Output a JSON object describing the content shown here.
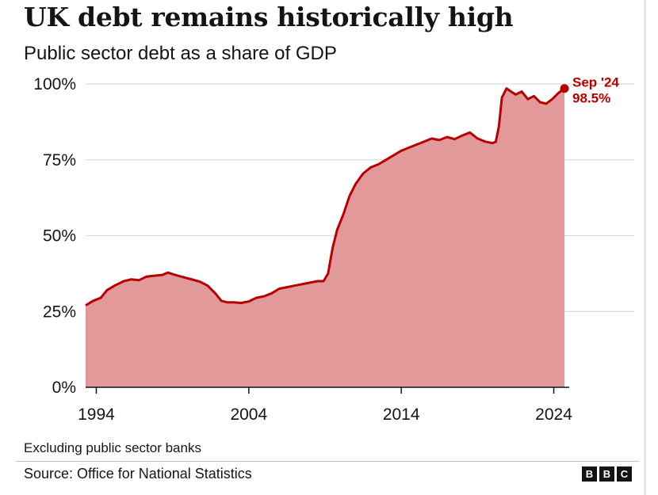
{
  "header": {
    "title": "UK debt remains historically high",
    "subtitle": "Public sector debt as a share of GDP"
  },
  "footer": {
    "note": "Excluding public sector banks",
    "source": "Source: Office for National Statistics",
    "logo_letters": [
      "B",
      "B",
      "C"
    ]
  },
  "colors": {
    "line": "#b80000",
    "area": "#e19999",
    "grid": "#d6d6d6"
  },
  "chart_data": {
    "type": "area",
    "title": "UK debt remains historically high",
    "subtitle": "Public sector debt as a share of GDP",
    "xlabel": "",
    "ylabel": "",
    "xlim": [
      1993.3,
      2024.7
    ],
    "ylim": [
      0,
      100
    ],
    "y_ticks": [
      {
        "value": 0,
        "label": "0%"
      },
      {
        "value": 25,
        "label": "25%"
      },
      {
        "value": 50,
        "label": "50%"
      },
      {
        "value": 75,
        "label": "75%"
      },
      {
        "value": 100,
        "label": "100%"
      }
    ],
    "x_ticks": [
      {
        "value": 1994,
        "label": "1994"
      },
      {
        "value": 2004,
        "label": "2004"
      },
      {
        "value": 2014,
        "label": "2014"
      },
      {
        "value": 2024,
        "label": "2024"
      }
    ],
    "grid": true,
    "series": [
      {
        "values": [
          [
            1993.3,
            27.0
          ],
          [
            1993.8,
            28.5
          ],
          [
            1994.3,
            29.5
          ],
          [
            1994.7,
            32.0
          ],
          [
            1995.2,
            33.5
          ],
          [
            1995.8,
            35.0
          ],
          [
            1996.3,
            35.6
          ],
          [
            1996.8,
            35.3
          ],
          [
            1997.3,
            36.5
          ],
          [
            1997.8,
            36.8
          ],
          [
            1998.3,
            37.0
          ],
          [
            1998.7,
            37.8
          ],
          [
            1999.2,
            37.0
          ],
          [
            1999.8,
            36.2
          ],
          [
            2000.3,
            35.5
          ],
          [
            2000.8,
            34.8
          ],
          [
            2001.3,
            33.5
          ],
          [
            2001.8,
            31.0
          ],
          [
            2002.2,
            28.5
          ],
          [
            2002.6,
            28.0
          ],
          [
            2003.0,
            28.0
          ],
          [
            2003.5,
            27.8
          ],
          [
            2004.0,
            28.3
          ],
          [
            2004.5,
            29.5
          ],
          [
            2005.0,
            30.0
          ],
          [
            2005.5,
            31.0
          ],
          [
            2006.0,
            32.5
          ],
          [
            2006.5,
            33.0
          ],
          [
            2007.0,
            33.5
          ],
          [
            2007.5,
            34.0
          ],
          [
            2008.0,
            34.5
          ],
          [
            2008.5,
            35.0
          ],
          [
            2008.9,
            35.0
          ],
          [
            2009.2,
            37.5
          ],
          [
            2009.5,
            46.0
          ],
          [
            2009.8,
            52.0
          ],
          [
            2010.2,
            57.0
          ],
          [
            2010.6,
            63.0
          ],
          [
            2011.0,
            67.0
          ],
          [
            2011.5,
            70.5
          ],
          [
            2012.0,
            72.5
          ],
          [
            2012.5,
            73.5
          ],
          [
            2013.0,
            75.0
          ],
          [
            2013.5,
            76.5
          ],
          [
            2014.0,
            78.0
          ],
          [
            2014.5,
            79.0
          ],
          [
            2015.0,
            80.0
          ],
          [
            2015.5,
            81.0
          ],
          [
            2016.0,
            82.0
          ],
          [
            2016.5,
            81.5
          ],
          [
            2017.0,
            82.5
          ],
          [
            2017.5,
            81.8
          ],
          [
            2018.0,
            83.0
          ],
          [
            2018.5,
            84.0
          ],
          [
            2019.0,
            82.0
          ],
          [
            2019.5,
            81.0
          ],
          [
            2020.0,
            80.5
          ],
          [
            2020.2,
            81.0
          ],
          [
            2020.4,
            86.0
          ],
          [
            2020.6,
            95.5
          ],
          [
            2020.9,
            98.5
          ],
          [
            2021.2,
            97.5
          ],
          [
            2021.5,
            96.5
          ],
          [
            2021.9,
            97.5
          ],
          [
            2022.3,
            95.0
          ],
          [
            2022.7,
            96.0
          ],
          [
            2023.1,
            94.0
          ],
          [
            2023.5,
            93.5
          ],
          [
            2023.9,
            95.0
          ],
          [
            2024.3,
            97.0
          ],
          [
            2024.7,
            98.5
          ]
        ]
      }
    ],
    "annotations": [
      {
        "text": "Sep '24",
        "x": 2024.7,
        "y": 98.5
      },
      {
        "text": "98.5%",
        "x": 2024.7,
        "y": 98.5
      }
    ]
  }
}
